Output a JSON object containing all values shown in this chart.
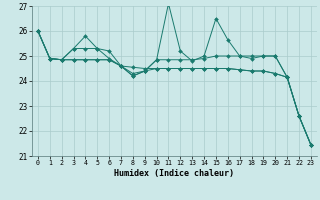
{
  "title": "",
  "xlabel": "Humidex (Indice chaleur)",
  "background_color": "#cce8e8",
  "grid_color": "#aacccc",
  "line_color": "#1a7a6e",
  "xlim": [
    -0.5,
    23.5
  ],
  "ylim": [
    21,
    27
  ],
  "yticks": [
    21,
    22,
    23,
    24,
    25,
    26,
    27
  ],
  "xticks": [
    0,
    1,
    2,
    3,
    4,
    5,
    6,
    7,
    8,
    9,
    10,
    11,
    12,
    13,
    14,
    15,
    16,
    17,
    18,
    19,
    20,
    21,
    22,
    23
  ],
  "series": [
    [
      26.0,
      24.9,
      24.85,
      25.3,
      25.8,
      25.3,
      25.2,
      24.6,
      24.2,
      24.4,
      24.85,
      27.1,
      25.2,
      24.8,
      25.0,
      26.5,
      25.65,
      25.0,
      24.9,
      25.0,
      25.0,
      24.15,
      22.6,
      21.45
    ],
    [
      26.0,
      24.9,
      24.85,
      25.3,
      25.3,
      25.3,
      24.9,
      24.6,
      24.2,
      24.4,
      24.85,
      24.85,
      24.85,
      24.85,
      24.9,
      25.0,
      25.0,
      25.0,
      25.0,
      25.0,
      25.0,
      24.15,
      22.6,
      21.45
    ],
    [
      26.0,
      24.9,
      24.85,
      24.85,
      24.85,
      24.85,
      24.85,
      24.6,
      24.55,
      24.5,
      24.5,
      24.5,
      24.5,
      24.5,
      24.5,
      24.5,
      24.5,
      24.45,
      24.4,
      24.4,
      24.3,
      24.15,
      22.6,
      21.45
    ],
    [
      26.0,
      24.9,
      24.85,
      24.85,
      24.85,
      24.85,
      24.85,
      24.6,
      24.3,
      24.4,
      24.5,
      24.5,
      24.5,
      24.5,
      24.5,
      24.5,
      24.5,
      24.45,
      24.4,
      24.4,
      24.3,
      24.15,
      22.6,
      21.45
    ]
  ]
}
